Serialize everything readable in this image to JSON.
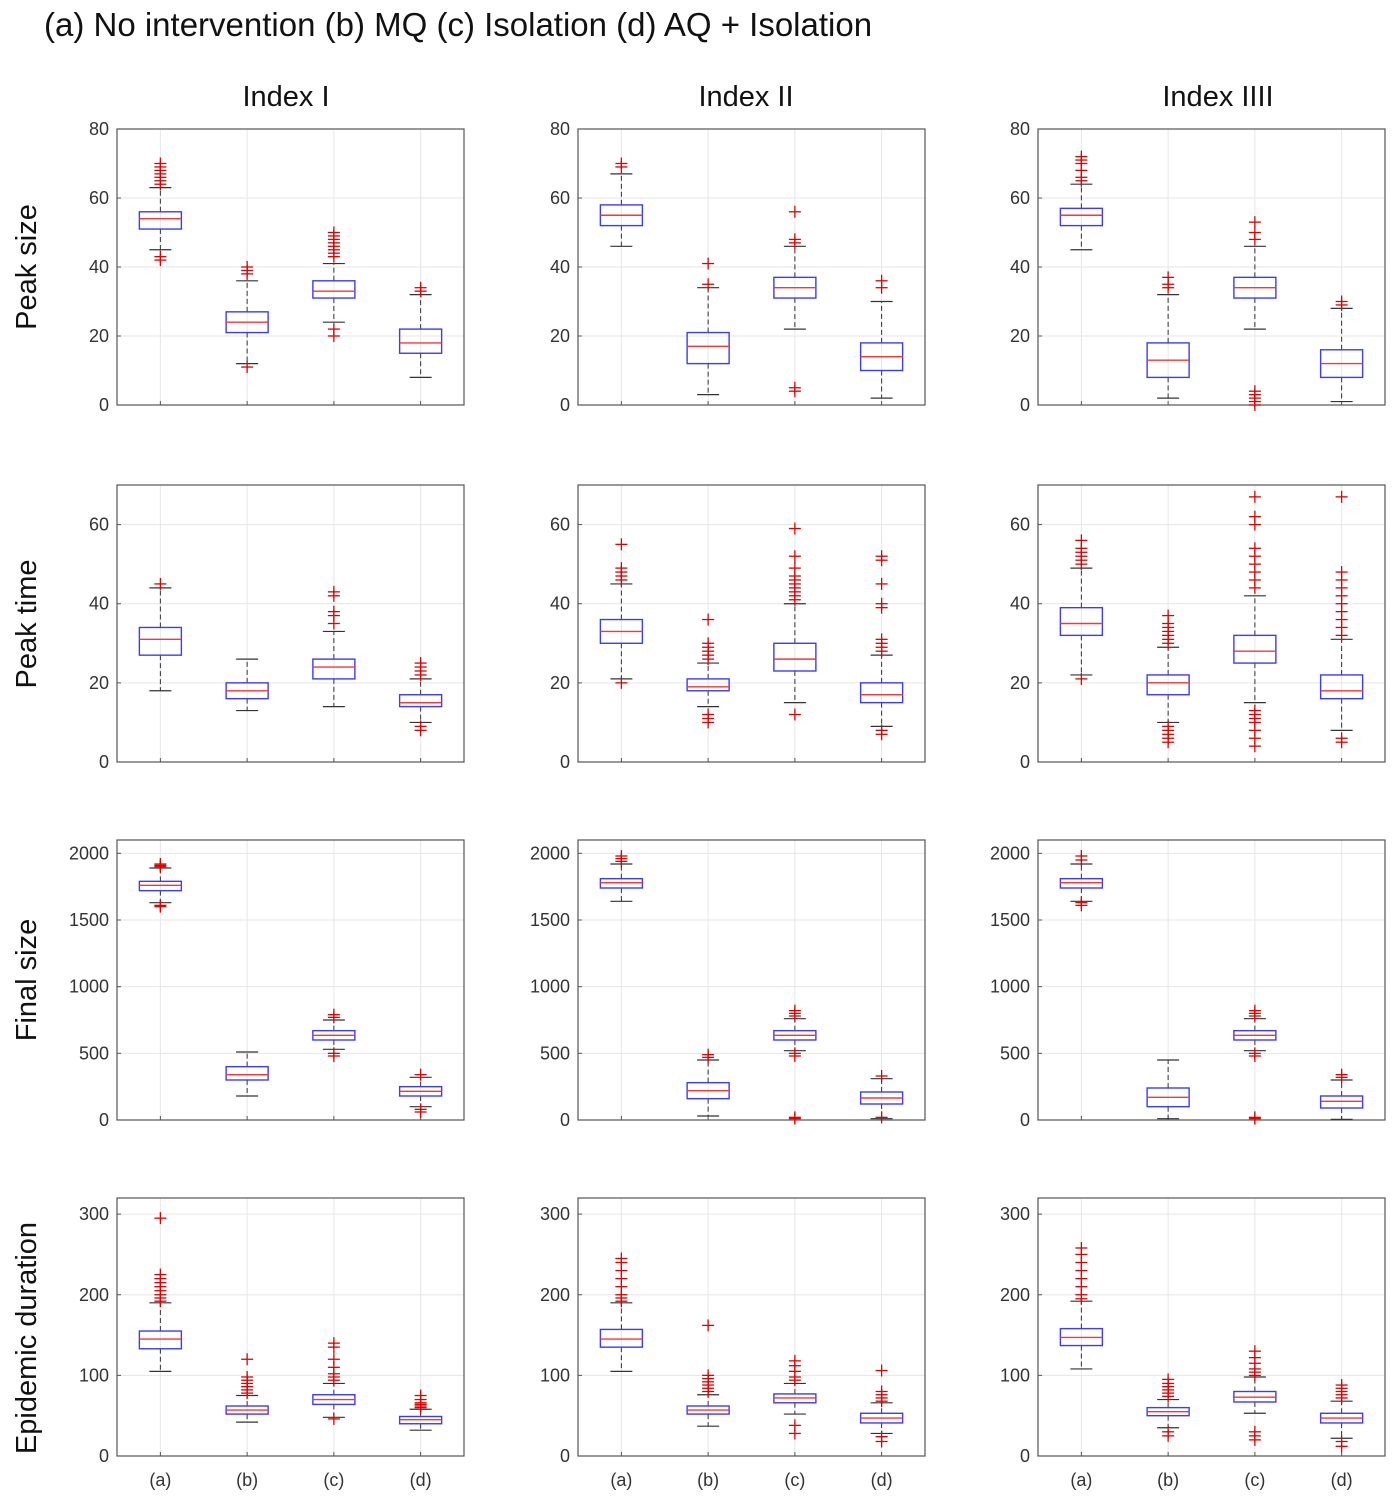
{
  "figure": {
    "title": "(a) No intervention (b) MQ (c) Isolation (d) AQ + Isolation",
    "columns": [
      "Index I",
      "Index II",
      "Index IIII"
    ],
    "rows": [
      "Peak size",
      "Peak time",
      "Final size",
      "Epidemic duration"
    ],
    "categories": [
      "(a)",
      "(b)",
      "(c)",
      "(d)"
    ],
    "colors": {
      "box": "#3b3bff",
      "median": "#ff3333",
      "outlier": "#e00000",
      "whisker": "#333333",
      "grid": "#e6e6e6",
      "axes": "#555555"
    }
  },
  "chart_data": [
    {
      "type": "boxplot",
      "row": "Peak size",
      "column": "Index I",
      "ylim": [
        0,
        80
      ],
      "yticks": [
        0,
        20,
        40,
        60,
        80
      ],
      "categories": [
        "(a)",
        "(b)",
        "(c)",
        "(d)"
      ],
      "boxes": [
        {
          "q1": 51,
          "median": 54,
          "q3": 56,
          "lo": 45,
          "hi": 63,
          "outliers": [
            42,
            43,
            64,
            65,
            66,
            67,
            68,
            69,
            70
          ]
        },
        {
          "q1": 21,
          "median": 24,
          "q3": 27,
          "lo": 12,
          "hi": 36,
          "outliers": [
            11,
            38,
            39,
            40
          ]
        },
        {
          "q1": 31,
          "median": 33,
          "q3": 36,
          "lo": 24,
          "hi": 41,
          "outliers": [
            20,
            22,
            43,
            44,
            45,
            46,
            47,
            48,
            49,
            50
          ]
        },
        {
          "q1": 15,
          "median": 18,
          "q3": 22,
          "lo": 8,
          "hi": 32,
          "outliers": [
            33,
            34
          ]
        }
      ]
    },
    {
      "type": "boxplot",
      "row": "Peak size",
      "column": "Index II",
      "ylim": [
        0,
        80
      ],
      "yticks": [
        0,
        20,
        40,
        60,
        80
      ],
      "categories": [
        "(a)",
        "(b)",
        "(c)",
        "(d)"
      ],
      "boxes": [
        {
          "q1": 52,
          "median": 55,
          "q3": 58,
          "lo": 46,
          "hi": 67,
          "outliers": [
            69,
            70
          ]
        },
        {
          "q1": 12,
          "median": 17,
          "q3": 21,
          "lo": 3,
          "hi": 34,
          "outliers": [
            35,
            41
          ]
        },
        {
          "q1": 31,
          "median": 34,
          "q3": 37,
          "lo": 22,
          "hi": 46,
          "outliers": [
            4,
            5,
            47,
            48,
            56
          ]
        },
        {
          "q1": 10,
          "median": 14,
          "q3": 18,
          "lo": 2,
          "hi": 30,
          "outliers": [
            34,
            36
          ]
        }
      ]
    },
    {
      "type": "boxplot",
      "row": "Peak size",
      "column": "Index IIII",
      "ylim": [
        0,
        80
      ],
      "yticks": [
        0,
        20,
        40,
        60,
        80
      ],
      "categories": [
        "(a)",
        "(b)",
        "(c)",
        "(d)"
      ],
      "boxes": [
        {
          "q1": 52,
          "median": 55,
          "q3": 57,
          "lo": 45,
          "hi": 64,
          "outliers": [
            65,
            66,
            68,
            70,
            71,
            72
          ]
        },
        {
          "q1": 8,
          "median": 13,
          "q3": 18,
          "lo": 2,
          "hi": 32,
          "outliers": [
            34,
            35,
            37
          ]
        },
        {
          "q1": 31,
          "median": 34,
          "q3": 37,
          "lo": 22,
          "hi": 46,
          "outliers": [
            0,
            1,
            2,
            3,
            4,
            48,
            50,
            53
          ]
        },
        {
          "q1": 8,
          "median": 12,
          "q3": 16,
          "lo": 1,
          "hi": 28,
          "outliers": [
            29,
            30
          ]
        }
      ]
    },
    {
      "type": "boxplot",
      "row": "Peak time",
      "column": "Index I",
      "ylim": [
        0,
        70
      ],
      "yticks": [
        0,
        20,
        40,
        60
      ],
      "categories": [
        "(a)",
        "(b)",
        "(c)",
        "(d)"
      ],
      "boxes": [
        {
          "q1": 27,
          "median": 31,
          "q3": 34,
          "lo": 18,
          "hi": 44,
          "outliers": [
            45
          ]
        },
        {
          "q1": 16,
          "median": 18,
          "q3": 20,
          "lo": 13,
          "hi": 26,
          "outliers": []
        },
        {
          "q1": 21,
          "median": 24,
          "q3": 26,
          "lo": 14,
          "hi": 33,
          "outliers": [
            35,
            37,
            38,
            42,
            43
          ]
        },
        {
          "q1": 14,
          "median": 15,
          "q3": 17,
          "lo": 10,
          "hi": 21,
          "outliers": [
            8,
            9,
            22,
            23,
            24,
            25
          ]
        }
      ]
    },
    {
      "type": "boxplot",
      "row": "Peak time",
      "column": "Index II",
      "ylim": [
        0,
        70
      ],
      "yticks": [
        0,
        20,
        40,
        60
      ],
      "categories": [
        "(a)",
        "(b)",
        "(c)",
        "(d)"
      ],
      "boxes": [
        {
          "q1": 30,
          "median": 33,
          "q3": 36,
          "lo": 21,
          "hi": 45,
          "outliers": [
            20,
            46,
            47,
            48,
            49,
            55
          ]
        },
        {
          "q1": 18,
          "median": 19,
          "q3": 21,
          "lo": 14,
          "hi": 25,
          "outliers": [
            10,
            11,
            12,
            26,
            27,
            28,
            29,
            30,
            36
          ]
        },
        {
          "q1": 23,
          "median": 26,
          "q3": 30,
          "lo": 15,
          "hi": 40,
          "outliers": [
            12,
            41,
            42,
            43,
            44,
            45,
            46,
            47,
            49,
            52,
            59
          ]
        },
        {
          "q1": 15,
          "median": 17,
          "q3": 20,
          "lo": 9,
          "hi": 27,
          "outliers": [
            7,
            8,
            28,
            29,
            30,
            31,
            39,
            40,
            45,
            51,
            52
          ]
        }
      ]
    },
    {
      "type": "boxplot",
      "row": "Peak time",
      "column": "Index IIII",
      "ylim": [
        0,
        70
      ],
      "yticks": [
        0,
        20,
        40,
        60
      ],
      "categories": [
        "(a)",
        "(b)",
        "(c)",
        "(d)"
      ],
      "boxes": [
        {
          "q1": 32,
          "median": 35,
          "q3": 39,
          "lo": 22,
          "hi": 49,
          "outliers": [
            21,
            50,
            51,
            52,
            53,
            54,
            56
          ]
        },
        {
          "q1": 17,
          "median": 20,
          "q3": 22,
          "lo": 10,
          "hi": 29,
          "outliers": [
            5,
            6,
            7,
            8,
            9,
            30,
            31,
            32,
            33,
            34,
            35,
            37
          ]
        },
        {
          "q1": 25,
          "median": 28,
          "q3": 32,
          "lo": 15,
          "hi": 42,
          "outliers": [
            4,
            6,
            8,
            10,
            11,
            12,
            13,
            44,
            46,
            48,
            50,
            52,
            54,
            60,
            62,
            67
          ]
        },
        {
          "q1": 16,
          "median": 18,
          "q3": 22,
          "lo": 8,
          "hi": 31,
          "outliers": [
            5,
            6,
            32,
            34,
            36,
            38,
            40,
            42,
            44,
            46,
            48,
            67
          ]
        }
      ]
    },
    {
      "type": "boxplot",
      "row": "Final size",
      "column": "Index I",
      "ylim": [
        0,
        2100
      ],
      "yticks": [
        0,
        500,
        1000,
        1500,
        2000
      ],
      "categories": [
        "(a)",
        "(b)",
        "(c)",
        "(d)"
      ],
      "boxes": [
        {
          "q1": 1720,
          "median": 1760,
          "q3": 1790,
          "lo": 1630,
          "hi": 1890,
          "outliers": [
            1600,
            1610,
            1900,
            1910,
            1920
          ]
        },
        {
          "q1": 300,
          "median": 340,
          "q3": 400,
          "lo": 180,
          "hi": 510,
          "outliers": []
        },
        {
          "q1": 600,
          "median": 635,
          "q3": 670,
          "lo": 530,
          "hi": 750,
          "outliers": [
            480,
            500,
            770,
            790
          ]
        },
        {
          "q1": 180,
          "median": 215,
          "q3": 250,
          "lo": 100,
          "hi": 320,
          "outliers": [
            60,
            80,
            340
          ]
        }
      ]
    },
    {
      "type": "boxplot",
      "row": "Final size",
      "column": "Index II",
      "ylim": [
        0,
        2100
      ],
      "yticks": [
        0,
        500,
        1000,
        1500,
        2000
      ],
      "categories": [
        "(a)",
        "(b)",
        "(c)",
        "(d)"
      ],
      "boxes": [
        {
          "q1": 1740,
          "median": 1780,
          "q3": 1810,
          "lo": 1640,
          "hi": 1920,
          "outliers": [
            1940,
            1960,
            1980
          ]
        },
        {
          "q1": 160,
          "median": 220,
          "q3": 280,
          "lo": 30,
          "hi": 450,
          "outliers": [
            470,
            490
          ]
        },
        {
          "q1": 600,
          "median": 635,
          "q3": 670,
          "lo": 520,
          "hi": 760,
          "outliers": [
            10,
            20,
            480,
            500,
            780,
            800,
            820
          ]
        },
        {
          "q1": 120,
          "median": 165,
          "q3": 210,
          "lo": 10,
          "hi": 310,
          "outliers": [
            20,
            330
          ]
        }
      ]
    },
    {
      "type": "boxplot",
      "row": "Final size",
      "column": "Index IIII",
      "ylim": [
        0,
        2100
      ],
      "yticks": [
        0,
        500,
        1000,
        1500,
        2000
      ],
      "categories": [
        "(a)",
        "(b)",
        "(c)",
        "(d)"
      ],
      "boxes": [
        {
          "q1": 1740,
          "median": 1780,
          "q3": 1810,
          "lo": 1640,
          "hi": 1920,
          "outliers": [
            1610,
            1630,
            1950,
            1980
          ]
        },
        {
          "q1": 100,
          "median": 170,
          "q3": 240,
          "lo": 10,
          "hi": 450,
          "outliers": []
        },
        {
          "q1": 600,
          "median": 635,
          "q3": 670,
          "lo": 520,
          "hi": 760,
          "outliers": [
            10,
            20,
            480,
            500,
            780,
            800,
            820
          ]
        },
        {
          "q1": 90,
          "median": 140,
          "q3": 180,
          "lo": 5,
          "hi": 300,
          "outliers": [
            320,
            340
          ]
        }
      ]
    },
    {
      "type": "boxplot",
      "row": "Epidemic duration",
      "column": "Index I",
      "ylim": [
        0,
        320
      ],
      "yticks": [
        0,
        100,
        200,
        300
      ],
      "categories": [
        "(a)",
        "(b)",
        "(c)",
        "(d)"
      ],
      "boxes": [
        {
          "q1": 133,
          "median": 145,
          "q3": 155,
          "lo": 105,
          "hi": 190,
          "outliers": [
            192,
            196,
            200,
            205,
            210,
            215,
            220,
            225,
            295
          ]
        },
        {
          "q1": 52,
          "median": 57,
          "q3": 62,
          "lo": 42,
          "hi": 75,
          "outliers": [
            78,
            82,
            86,
            90,
            94,
            98,
            120
          ]
        },
        {
          "q1": 64,
          "median": 70,
          "q3": 76,
          "lo": 48,
          "hi": 90,
          "outliers": [
            46,
            94,
            98,
            102,
            110,
            120,
            135,
            140
          ]
        },
        {
          "q1": 40,
          "median": 45,
          "q3": 49,
          "lo": 32,
          "hi": 58,
          "outliers": [
            60,
            62,
            64,
            66,
            70,
            75
          ]
        }
      ]
    },
    {
      "type": "boxplot",
      "row": "Epidemic duration",
      "column": "Index II",
      "ylim": [
        0,
        320
      ],
      "yticks": [
        0,
        100,
        200,
        300
      ],
      "categories": [
        "(a)",
        "(b)",
        "(c)",
        "(d)"
      ],
      "boxes": [
        {
          "q1": 135,
          "median": 145,
          "q3": 157,
          "lo": 105,
          "hi": 190,
          "outliers": [
            192,
            196,
            200,
            210,
            220,
            230,
            240,
            245
          ]
        },
        {
          "q1": 52,
          "median": 57,
          "q3": 62,
          "lo": 37,
          "hi": 76,
          "outliers": [
            80,
            84,
            88,
            92,
            96,
            100,
            162
          ]
        },
        {
          "q1": 66,
          "median": 72,
          "q3": 77,
          "lo": 52,
          "hi": 90,
          "outliers": [
            28,
            38,
            94,
            98,
            105,
            112,
            118
          ]
        },
        {
          "q1": 41,
          "median": 47,
          "q3": 53,
          "lo": 28,
          "hi": 66,
          "outliers": [
            18,
            24,
            68,
            72,
            76,
            80,
            106
          ]
        }
      ]
    },
    {
      "type": "boxplot",
      "row": "Epidemic duration",
      "column": "Index IIII",
      "ylim": [
        0,
        320
      ],
      "yticks": [
        0,
        100,
        200,
        300
      ],
      "categories": [
        "(a)",
        "(b)",
        "(c)",
        "(d)"
      ],
      "boxes": [
        {
          "q1": 137,
          "median": 147,
          "q3": 158,
          "lo": 108,
          "hi": 192,
          "outliers": [
            195,
            200,
            210,
            220,
            230,
            240,
            250,
            258
          ]
        },
        {
          "q1": 50,
          "median": 55,
          "q3": 60,
          "lo": 35,
          "hi": 70,
          "outliers": [
            25,
            30,
            74,
            78,
            82,
            86,
            90,
            95
          ]
        },
        {
          "q1": 67,
          "median": 73,
          "q3": 80,
          "lo": 53,
          "hi": 98,
          "outliers": [
            20,
            25,
            30,
            100,
            104,
            108,
            115,
            122,
            130
          ]
        },
        {
          "q1": 41,
          "median": 47,
          "q3": 53,
          "lo": 22,
          "hi": 68,
          "outliers": [
            12,
            18,
            72,
            76,
            80,
            84,
            88
          ]
        }
      ]
    }
  ]
}
